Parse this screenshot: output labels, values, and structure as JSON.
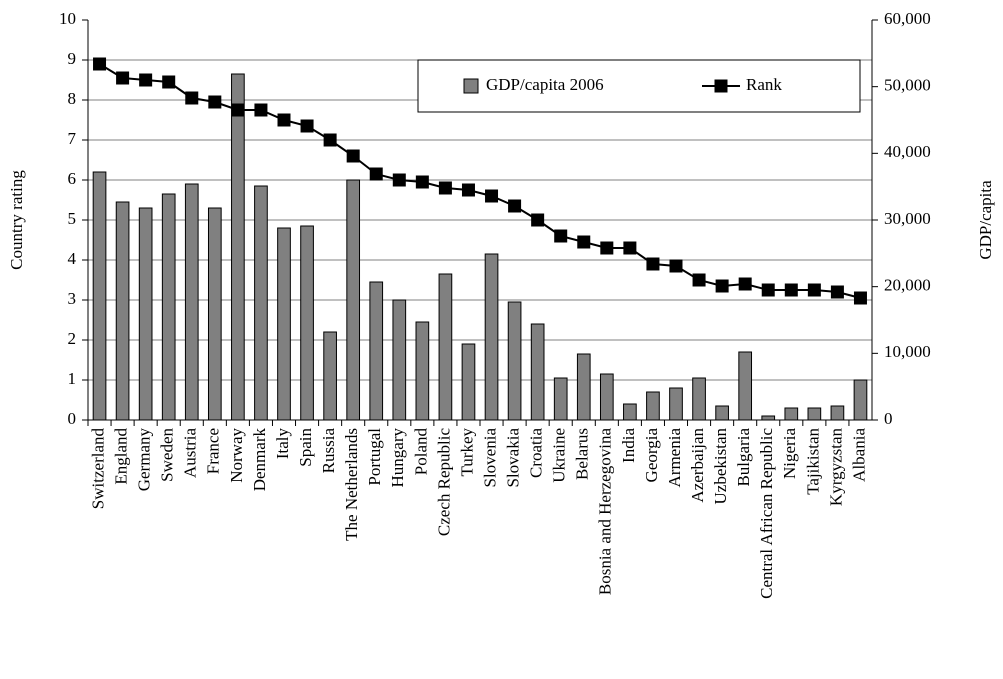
{
  "chart_data": {
    "type": "bar_line",
    "categories": [
      "Switzerland",
      "England",
      "Germany",
      "Sweden",
      "Austria",
      "France",
      "Norway",
      "Denmark",
      "Italy",
      "Spain",
      "Russia",
      "The Netherlands",
      "Portugal",
      "Hungary",
      "Poland",
      "Czech Republic",
      "Turkey",
      "Slovenia",
      "Slovakia",
      "Croatia",
      "Ukraine",
      "Belarus",
      "Bosnia and Herzegovina",
      "India",
      "Georgia",
      "Armenia",
      "Azerbaijan",
      "Uzbekistan",
      "Bulgaria",
      "Central African Republic",
      "Nigeria",
      "Tajikistan",
      "Kyrgyzstan",
      "Albania"
    ],
    "series": [
      {
        "name": "GDP/capita 2006",
        "type": "bar",
        "axis": "y2",
        "color": "#808080",
        "values": [
          37200,
          32700,
          31800,
          33900,
          35400,
          31800,
          51900,
          35100,
          28800,
          29100,
          13200,
          36000,
          20700,
          18000,
          14700,
          21900,
          11400,
          24900,
          17700,
          14400,
          6300,
          9900,
          6900,
          2400,
          4200,
          4800,
          6300,
          2100,
          10200,
          600,
          1800,
          1800,
          2100,
          6000
        ]
      },
      {
        "name": "Rank",
        "type": "line",
        "axis": "y",
        "color": "#000000",
        "values": [
          8.9,
          8.55,
          8.5,
          8.45,
          8.05,
          7.95,
          7.75,
          7.75,
          7.5,
          7.35,
          7.0,
          6.6,
          6.15,
          6.0,
          5.95,
          5.8,
          5.75,
          5.6,
          5.35,
          5.0,
          4.6,
          4.45,
          4.3,
          4.3,
          3.9,
          3.85,
          3.5,
          3.35,
          3.4,
          3.25,
          3.25,
          3.25,
          3.2,
          3.05
        ]
      }
    ],
    "y_label": "Country rating",
    "y2_label": "GDP/capita",
    "ylim": [
      0,
      10
    ],
    "yticks": [
      0,
      1,
      2,
      3,
      4,
      5,
      6,
      7,
      8,
      9,
      10
    ],
    "y2lim": [
      0,
      60000
    ],
    "y2ticks": [
      0,
      {
        "value": 10000,
        "label": "10,000"
      },
      {
        "value": 20000,
        "label": "20,000"
      },
      {
        "value": 30000,
        "label": "30,000"
      },
      {
        "value": 40000,
        "label": "40,000"
      },
      {
        "value": 50000,
        "label": "50,000"
      },
      {
        "value": 60000,
        "label": "60,000"
      }
    ],
    "grid": true,
    "legend": "upper-right"
  }
}
